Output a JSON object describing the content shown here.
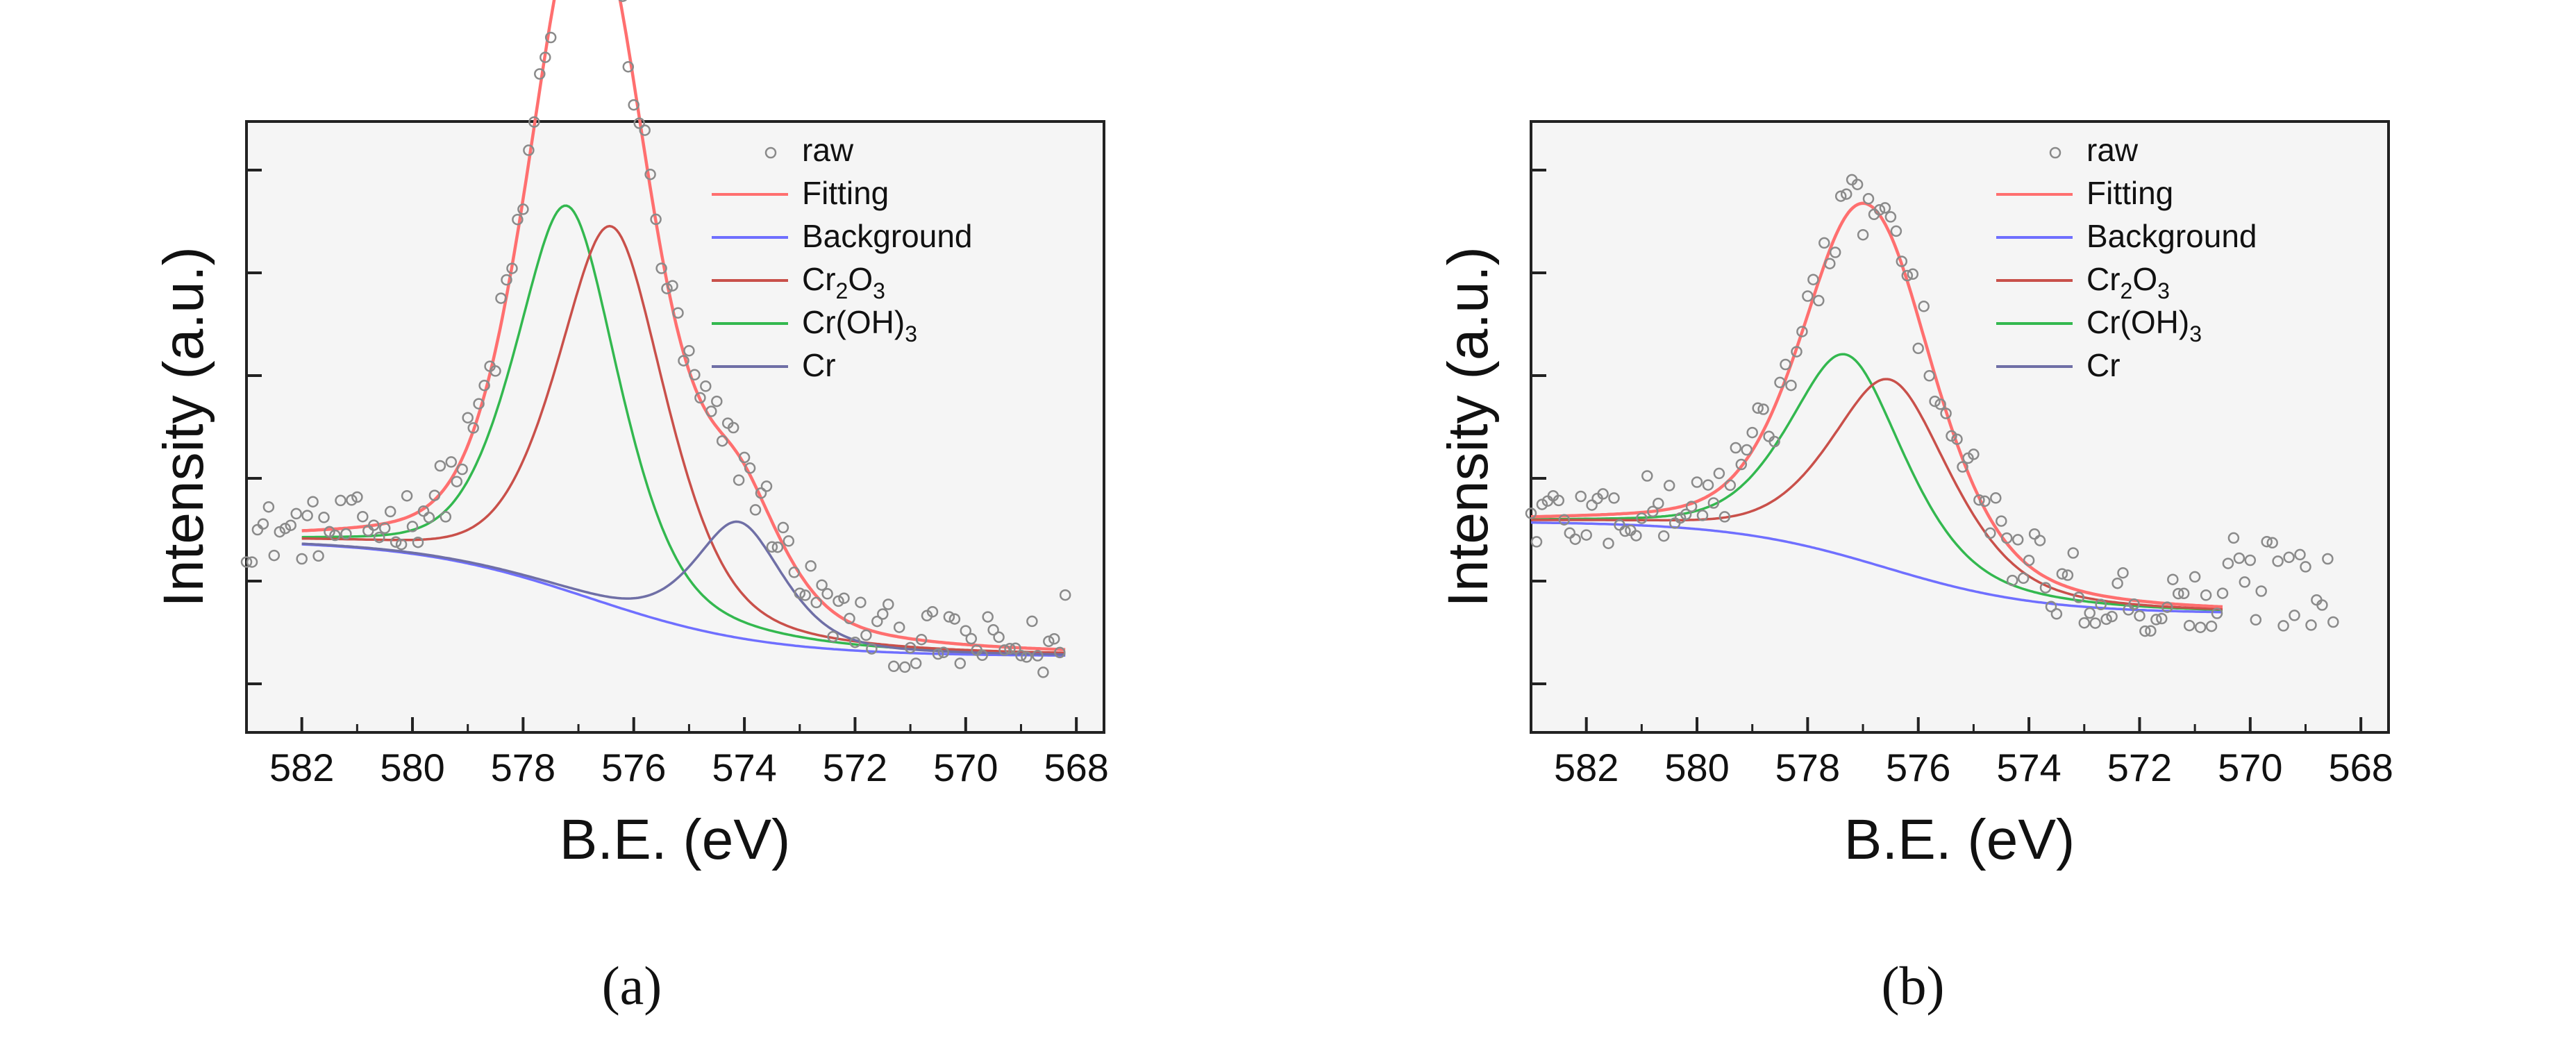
{
  "figure": {
    "caption_a": "(a)",
    "caption_b": "(b)"
  },
  "colors": {
    "raw": "#8a8a8a",
    "fitting": "#ff6f6f",
    "background": "#6f6fff",
    "cr2o3": "#c9504a",
    "croh3": "#33b84f",
    "cr": "#6f6fa6"
  },
  "chart_data": [
    {
      "type": "line",
      "panel": "a",
      "xlabel": "B.E. (eV)",
      "ylabel": "Intensity (a.u.)",
      "xlim": [
        583,
        567.5
      ],
      "x_reversed": true,
      "ylim": [
        0,
        1
      ],
      "xticks": [
        582,
        580,
        578,
        576,
        574,
        572,
        570,
        568
      ],
      "y_tick_labels_shown": false,
      "legend": {
        "position": "top-right",
        "entries": [
          {
            "key": "raw",
            "label": "raw",
            "style": "marker"
          },
          {
            "key": "fitting",
            "label": "Fitting",
            "style": "line"
          },
          {
            "key": "background",
            "label": "Background",
            "style": "line"
          },
          {
            "key": "cr2o3",
            "label": "Cr2O3",
            "style": "line"
          },
          {
            "key": "croh3",
            "label": "Cr(OH)3",
            "style": "line"
          },
          {
            "key": "cr",
            "label": "Cr",
            "style": "line"
          }
        ]
      },
      "model": {
        "background": {
          "type": "step",
          "hi": 0.315,
          "lo": 0.125,
          "center": 576.8,
          "width": 1.6
        },
        "components": [
          {
            "key": "croh3",
            "center": 577.2,
            "height": 0.63,
            "width": 1.0
          },
          {
            "key": "cr2o3",
            "center": 576.4,
            "height": 0.62,
            "width": 1.05
          },
          {
            "key": "cr",
            "center": 574.1,
            "height": 0.19,
            "width": 0.85
          }
        ],
        "fit_x_range": [
          582,
          568.2
        ],
        "raw_x_range": [
          583,
          568.2
        ],
        "raw_step": 0.1,
        "raw_noise": 0.05
      }
    },
    {
      "type": "line",
      "panel": "b",
      "xlabel": "B.E. (eV)",
      "ylabel": "Intensity (a.u.)",
      "xlim": [
        583,
        567.5
      ],
      "x_reversed": true,
      "ylim": [
        0,
        1
      ],
      "xticks": [
        582,
        580,
        578,
        576,
        574,
        572,
        570,
        568
      ],
      "y_tick_labels_shown": false,
      "legend": {
        "position": "top-right",
        "entries": [
          {
            "key": "raw",
            "label": "raw",
            "style": "marker"
          },
          {
            "key": "fitting",
            "label": "Fitting",
            "style": "line"
          },
          {
            "key": "background",
            "label": "Background",
            "style": "line"
          },
          {
            "key": "cr2o3",
            "label": "Cr2O3",
            "style": "line"
          },
          {
            "key": "croh3",
            "label": "Cr(OH)3",
            "style": "line"
          },
          {
            "key": "cr",
            "label": "Cr",
            "style": "line"
          }
        ]
      },
      "model": {
        "background": {
          "type": "step",
          "hi": 0.345,
          "lo": 0.195,
          "center": 576.6,
          "width": 1.4
        },
        "components": [
          {
            "key": "croh3",
            "center": 577.3,
            "height": 0.33,
            "width": 1.1
          },
          {
            "key": "cr2o3",
            "center": 576.5,
            "height": 0.31,
            "width": 1.15
          }
        ],
        "fit_x_range": [
          583,
          570.5
        ],
        "raw_x_range": [
          583,
          568.5
        ],
        "raw_step": 0.1,
        "raw_noise": 0.06
      }
    }
  ]
}
